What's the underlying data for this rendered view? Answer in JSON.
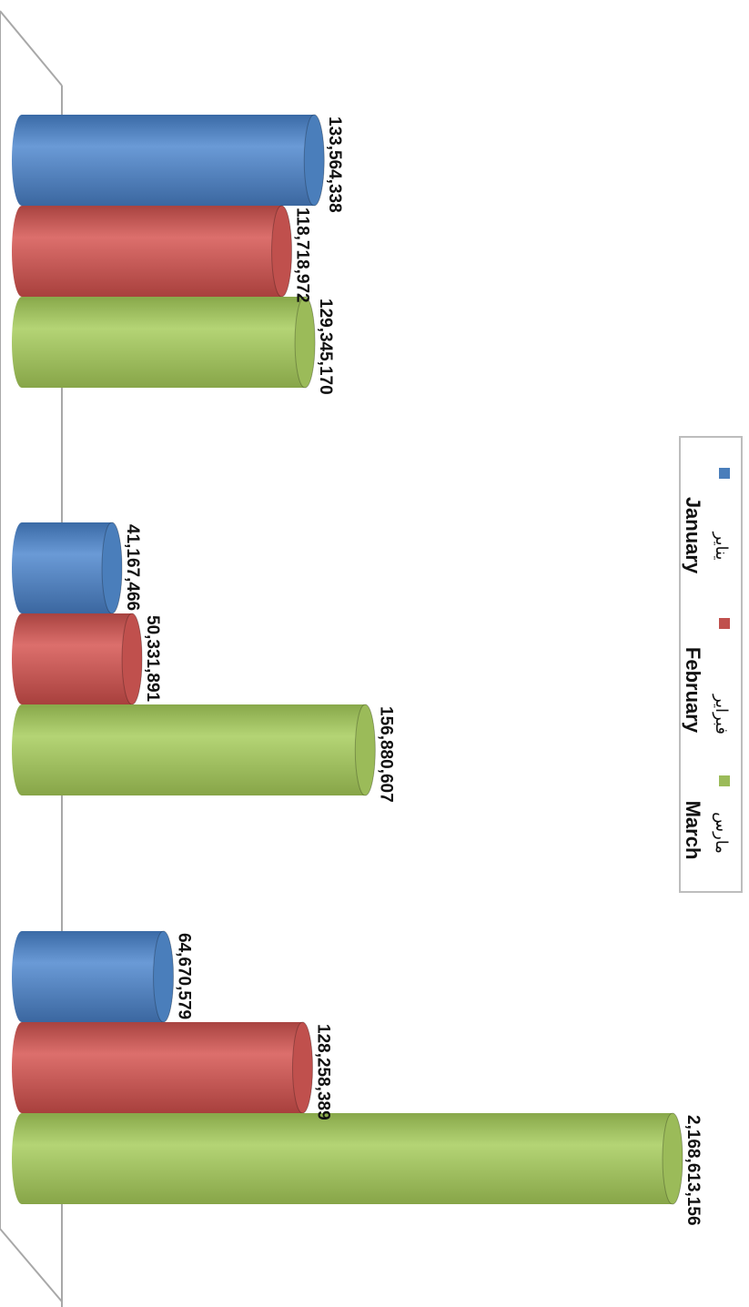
{
  "chart_data": {
    "type": "bar",
    "orientation": "horizontal-3d-cylinder",
    "categories": [
      "",
      "",
      ""
    ],
    "series": [
      {
        "name": "January",
        "name_ar": "يناير",
        "color": "#4A7EBB",
        "values": [
          133564338,
          41167466,
          64670579
        ]
      },
      {
        "name": "February",
        "name_ar": "فبراير",
        "color": "#C0504D",
        "values": [
          118718972,
          50331891,
          128258389
        ]
      },
      {
        "name": "March",
        "name_ar": "مارس",
        "color": "#9BBB59",
        "values": [
          129345170,
          156880607,
          2168613156
        ]
      }
    ],
    "data_labels": [
      [
        "133,564,338",
        "41,167,466",
        "64,670,579"
      ],
      [
        "118,718,972",
        "50,331,891",
        "128,258,389"
      ],
      [
        "129,345,170",
        "156,880,607",
        "2,168,613,156"
      ]
    ],
    "title": "",
    "xlabel": "",
    "ylabel": "",
    "grid": false,
    "legend": "right",
    "axis_scale": "broken"
  }
}
